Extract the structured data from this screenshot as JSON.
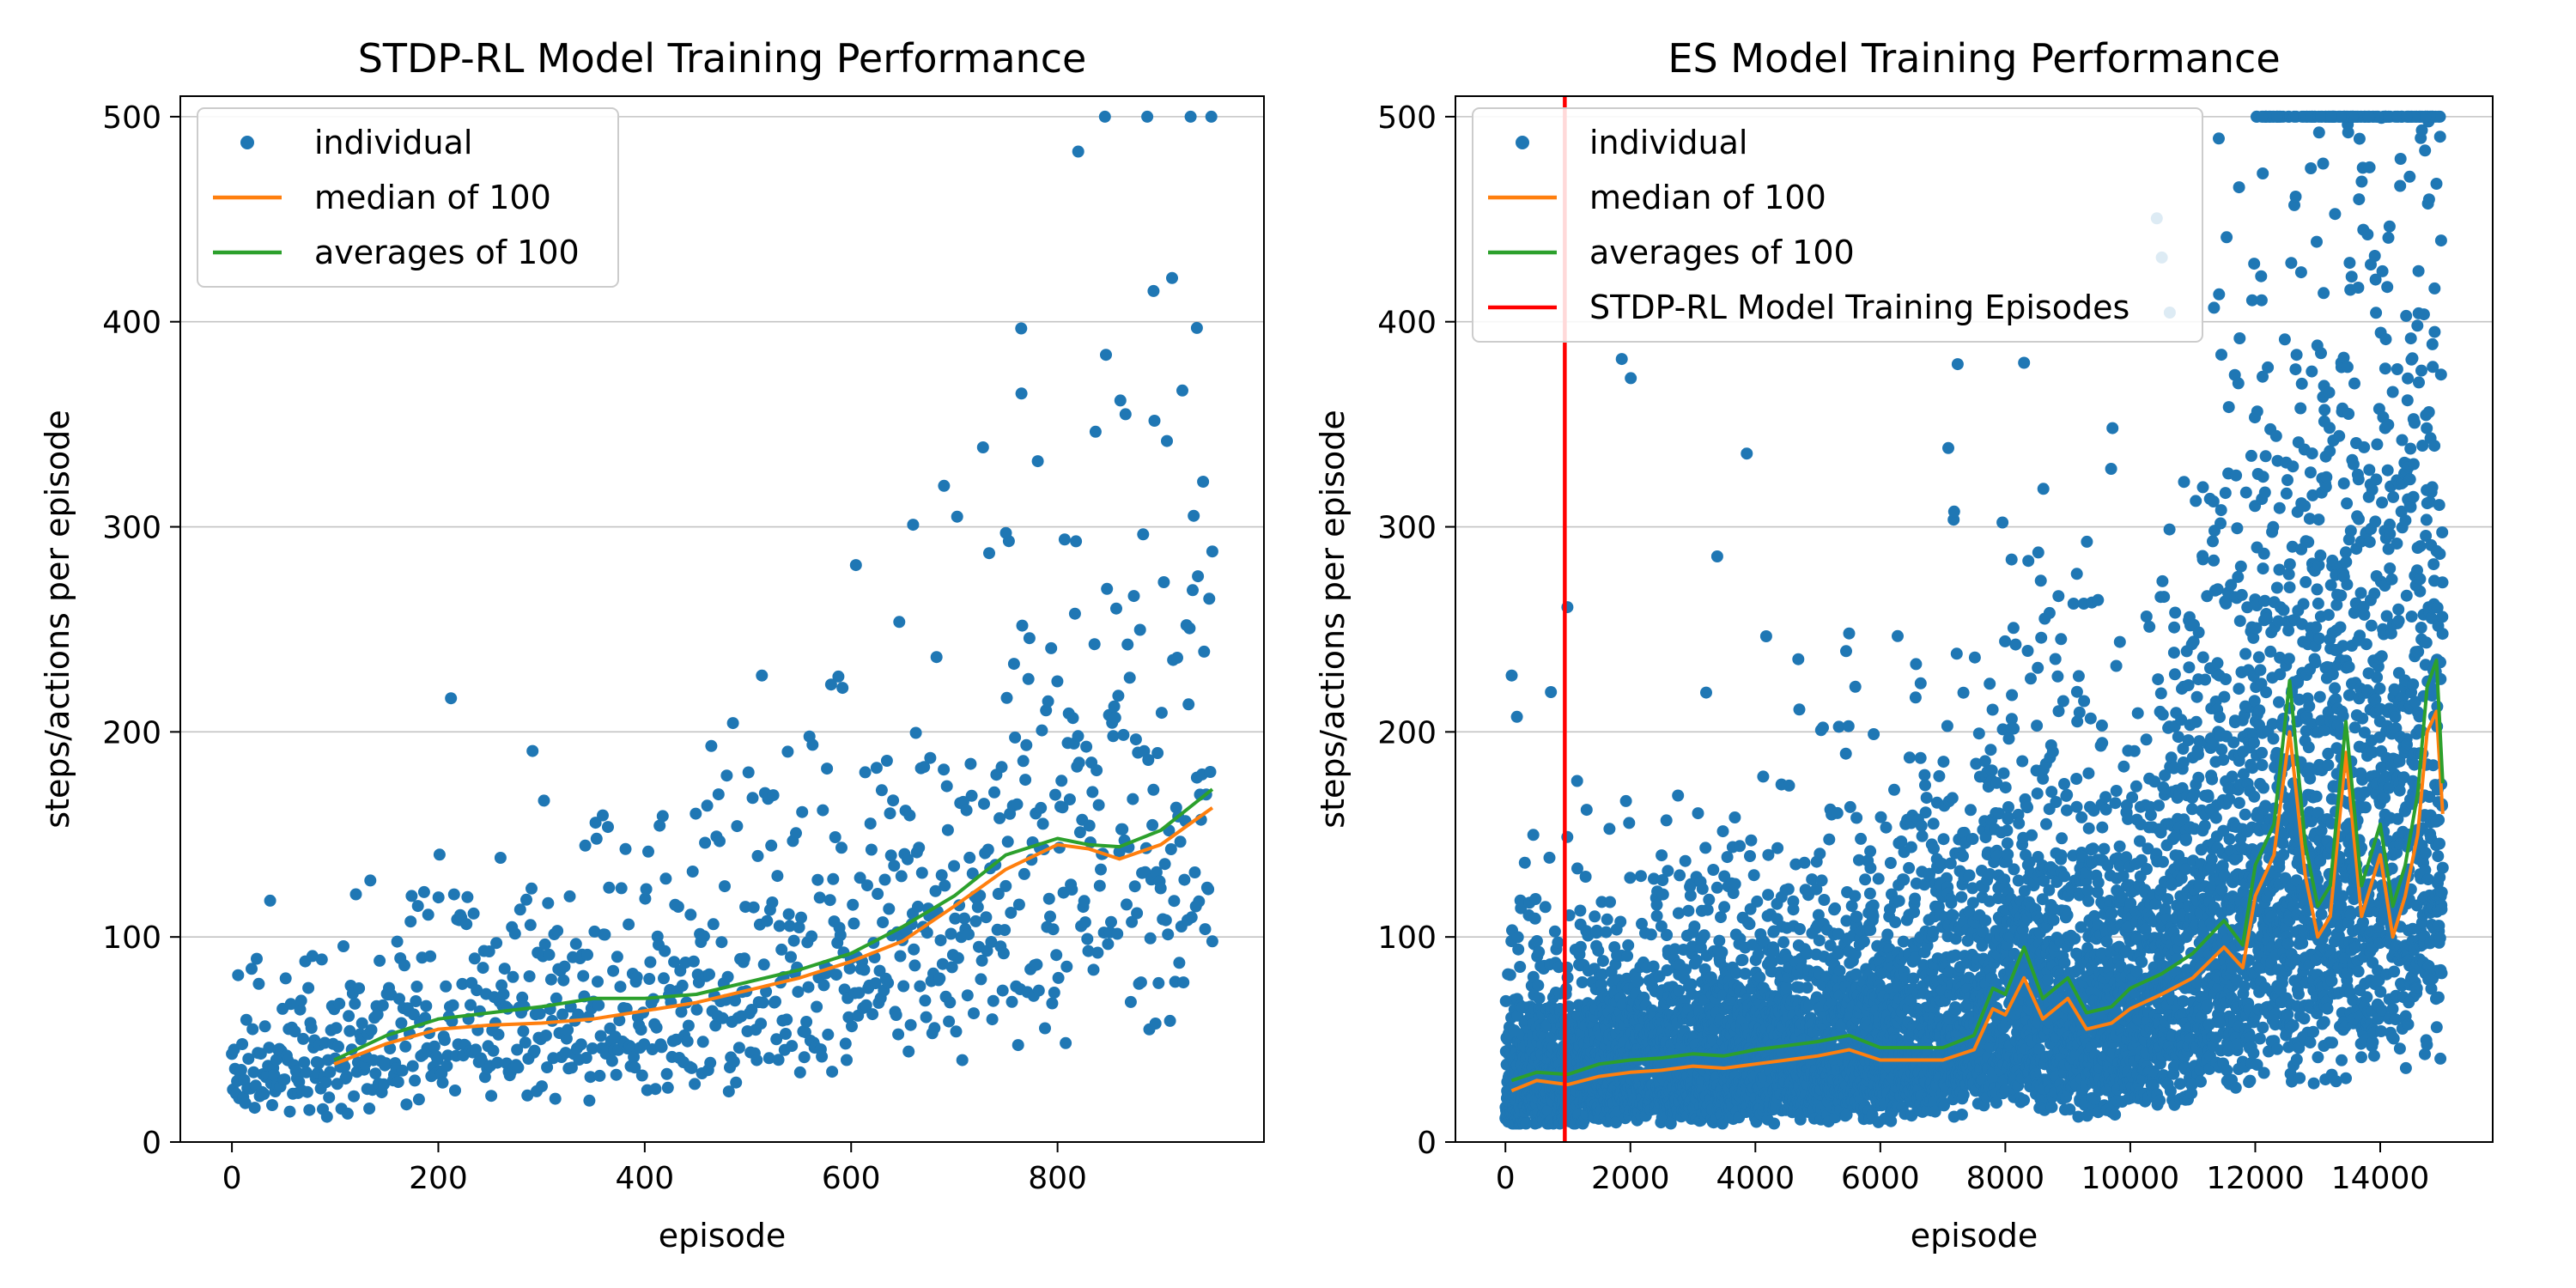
{
  "chart_data": [
    {
      "type": "scatter",
      "title": "STDP-RL Model Training Performance",
      "xlabel": "episode",
      "ylabel": "steps/actions per episode",
      "xlim": [
        -50,
        1000
      ],
      "ylim": [
        0,
        510
      ],
      "x_ticks": [
        0,
        200,
        400,
        600,
        800
      ],
      "y_ticks": [
        0,
        100,
        200,
        300,
        400,
        500
      ],
      "grid": "horizontal",
      "legend_position": "top-left",
      "series": [
        {
          "name": "individual",
          "kind": "points",
          "color": "#1f77b4",
          "x_range": [
            0,
            950
          ],
          "approx_trend": [
            [
              0,
              35
            ],
            [
              200,
              55
            ],
            [
              400,
              65
            ],
            [
              600,
              90
            ],
            [
              800,
              140
            ],
            [
              950,
              165
            ]
          ],
          "notable_points": [
            [
              820,
              483
            ],
            [
              893,
              415
            ],
            [
              935,
              397
            ],
            [
              765,
              365
            ],
            [
              690,
              320
            ],
            [
              660,
              301
            ],
            [
              750,
              297
            ],
            [
              950,
              288
            ]
          ]
        },
        {
          "name": "median of 100",
          "kind": "line",
          "color": "#ff7f0e",
          "x": [
            99,
            150,
            200,
            250,
            300,
            350,
            400,
            450,
            500,
            550,
            600,
            650,
            700,
            750,
            800,
            830,
            860,
            900,
            950
          ],
          "y": [
            38,
            48,
            55,
            57,
            58,
            60,
            64,
            68,
            74,
            80,
            88,
            98,
            115,
            133,
            145,
            143,
            138,
            145,
            163
          ]
        },
        {
          "name": "averages of 100",
          "kind": "line",
          "color": "#2ca02c",
          "x": [
            99,
            150,
            200,
            250,
            300,
            350,
            400,
            450,
            500,
            550,
            600,
            650,
            700,
            750,
            800,
            830,
            860,
            900,
            950
          ],
          "y": [
            40,
            52,
            60,
            63,
            66,
            70,
            70,
            72,
            78,
            84,
            92,
            105,
            120,
            140,
            148,
            145,
            144,
            152,
            172
          ]
        }
      ]
    },
    {
      "type": "scatter",
      "title": "ES Model Training Performance",
      "xlabel": "episode",
      "ylabel": "steps/actions per episode",
      "xlim": [
        -800,
        15800
      ],
      "ylim": [
        0,
        510
      ],
      "x_ticks": [
        0,
        2000,
        4000,
        6000,
        8000,
        10000,
        12000,
        14000
      ],
      "y_ticks": [
        0,
        100,
        200,
        300,
        400,
        500
      ],
      "grid": "horizontal",
      "legend_position": "top-left",
      "series": [
        {
          "name": "individual",
          "kind": "points",
          "color": "#1f77b4",
          "x_range": [
            0,
            15000
          ],
          "approx_trend": [
            [
              0,
              30
            ],
            [
              2000,
              38
            ],
            [
              4000,
              42
            ],
            [
              6000,
              45
            ],
            [
              8000,
              75
            ],
            [
              10000,
              60
            ],
            [
              12000,
              120
            ],
            [
              13000,
              150
            ],
            [
              15000,
              200
            ]
          ],
          "notable_points": [
            [
              8300,
              380
            ],
            [
              5500,
              248
            ],
            [
              5600,
              222
            ],
            [
              1300,
              162
            ]
          ]
        },
        {
          "name": "median of 100",
          "kind": "line",
          "color": "#ff7f0e",
          "x": [
            99,
            500,
            1000,
            1500,
            2000,
            2500,
            3000,
            3500,
            4000,
            4500,
            5000,
            5500,
            6000,
            6500,
            7000,
            7500,
            7800,
            8000,
            8300,
            8600,
            9000,
            9300,
            9700,
            10000,
            10500,
            11000,
            11500,
            11800,
            12000,
            12300,
            12550,
            12800,
            13000,
            13200,
            13450,
            13700,
            14000,
            14200,
            14400,
            14600,
            14750,
            14900,
            15000
          ],
          "y": [
            25,
            30,
            28,
            32,
            34,
            35,
            37,
            36,
            38,
            40,
            42,
            45,
            40,
            40,
            40,
            45,
            65,
            62,
            80,
            60,
            70,
            55,
            58,
            65,
            72,
            80,
            95,
            85,
            120,
            140,
            200,
            130,
            100,
            110,
            190,
            110,
            140,
            100,
            120,
            150,
            200,
            210,
            160
          ]
        },
        {
          "name": "averages of 100",
          "kind": "line",
          "color": "#2ca02c",
          "x": [
            99,
            500,
            1000,
            1500,
            2000,
            2500,
            3000,
            3500,
            4000,
            4500,
            5000,
            5500,
            6000,
            6500,
            7000,
            7500,
            7800,
            8000,
            8300,
            8600,
            9000,
            9300,
            9700,
            10000,
            10500,
            11000,
            11500,
            11800,
            12000,
            12300,
            12550,
            12800,
            13000,
            13200,
            13450,
            13700,
            14000,
            14200,
            14400,
            14600,
            14750,
            14900,
            15000
          ],
          "y": [
            30,
            34,
            33,
            38,
            40,
            41,
            43,
            42,
            45,
            47,
            49,
            52,
            46,
            46,
            46,
            52,
            75,
            72,
            95,
            70,
            80,
            63,
            66,
            75,
            82,
            92,
            108,
            96,
            135,
            155,
            225,
            145,
            115,
            125,
            205,
            125,
            155,
            115,
            135,
            170,
            222,
            235,
            175
          ]
        },
        {
          "name": "STDP-RL Model Training Episodes",
          "kind": "vline",
          "color": "#ff0000",
          "x": 950
        }
      ]
    }
  ]
}
